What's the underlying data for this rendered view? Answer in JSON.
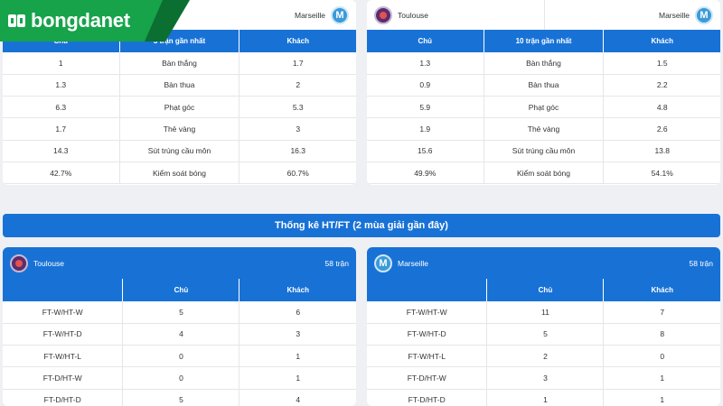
{
  "brand": {
    "name": "bongdanet"
  },
  "left_top": {
    "away_team": "Marseille",
    "columns": [
      "Chủ",
      "3 trận gần nhất",
      "Khách"
    ],
    "rows": [
      [
        "1",
        "Bàn thắng",
        "1.7"
      ],
      [
        "1.3",
        "Bàn thua",
        "2"
      ],
      [
        "6.3",
        "Phạt góc",
        "5.3"
      ],
      [
        "1.7",
        "Thẻ vàng",
        "3"
      ],
      [
        "14.3",
        "Sút trúng cầu môn",
        "16.3"
      ],
      [
        "42.7%",
        "Kiểm soát bóng",
        "60.7%"
      ]
    ]
  },
  "right_top": {
    "home_team": "Toulouse",
    "away_team": "Marseille",
    "columns": [
      "Chủ",
      "10 trận gần nhất",
      "Khách"
    ],
    "rows": [
      [
        "1.3",
        "Bàn thắng",
        "1.5"
      ],
      [
        "0.9",
        "Bàn thua",
        "2.2"
      ],
      [
        "5.9",
        "Phạt góc",
        "4.8"
      ],
      [
        "1.9",
        "Thẻ vàng",
        "2.6"
      ],
      [
        "15.6",
        "Sút trúng cầu môn",
        "13.8"
      ],
      [
        "49.9%",
        "Kiểm soát bóng",
        "54.1%"
      ]
    ]
  },
  "htft_banner": "Thống kê HT/FT (2 mùa giải gần đây)",
  "left_bottom": {
    "team": "Toulouse",
    "count": "58 trận",
    "columns": [
      "",
      "Chủ",
      "Khách"
    ],
    "rows": [
      [
        "FT-W/HT-W",
        "5",
        "6"
      ],
      [
        "FT-W/HT-D",
        "4",
        "3"
      ],
      [
        "FT-W/HT-L",
        "0",
        "1"
      ],
      [
        "FT-D/HT-W",
        "0",
        "1"
      ],
      [
        "FT-D/HT-D",
        "5",
        "4"
      ]
    ]
  },
  "right_bottom": {
    "team": "Marseille",
    "count": "58 trận",
    "columns": [
      "",
      "Chủ",
      "Khách"
    ],
    "rows": [
      [
        "FT-W/HT-W",
        "11",
        "7"
      ],
      [
        "FT-W/HT-D",
        "5",
        "8"
      ],
      [
        "FT-W/HT-L",
        "2",
        "0"
      ],
      [
        "FT-D/HT-W",
        "3",
        "1"
      ],
      [
        "FT-D/HT-D",
        "1",
        "1"
      ]
    ]
  },
  "icons": {
    "marseille_crest": "marseille-crest-icon",
    "toulouse_crest": "toulouse-crest-icon"
  },
  "colors": {
    "header_blue": "#1872d6",
    "brand_green": "#16a34a"
  }
}
